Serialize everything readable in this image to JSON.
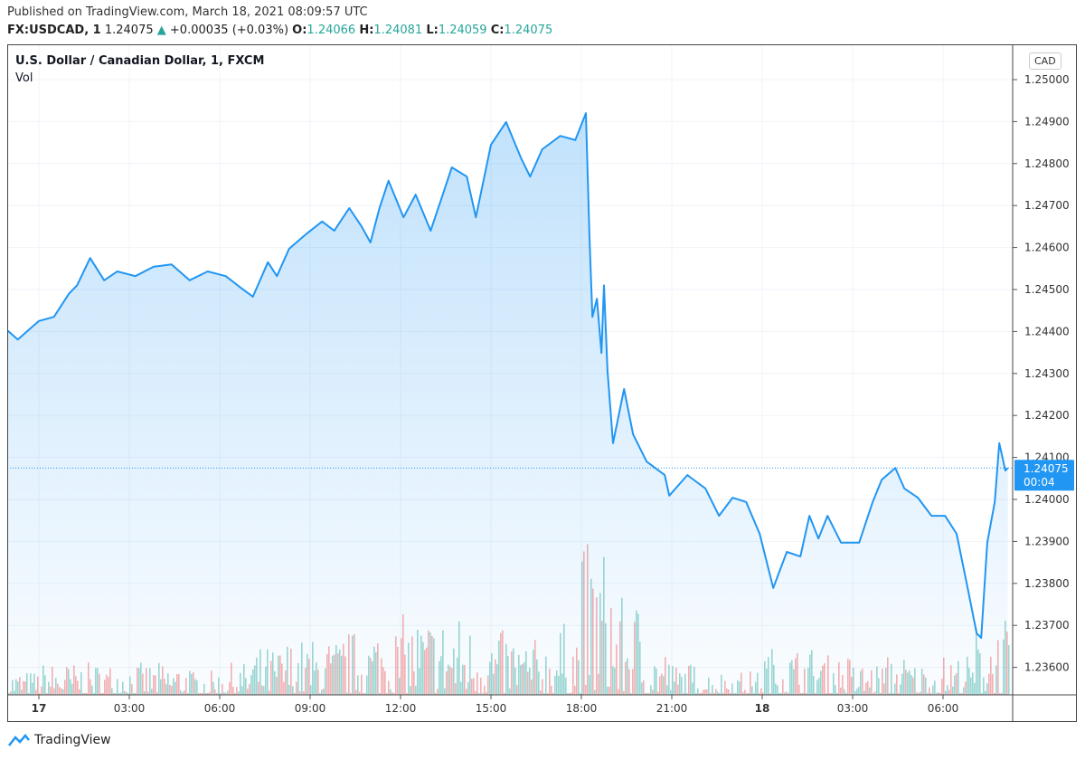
{
  "header": {
    "published": "Published on TradingView.com, March 18, 2021 08:09:57 UTC",
    "symbol": "FX:USDCAD, 1",
    "last": "1.24075",
    "change": "+0.00035 (+0.03%)",
    "o_label": "O:",
    "o": "1.24066",
    "h_label": "H:",
    "h": "1.24081",
    "l_label": "L:",
    "l": "1.24059",
    "c_label": "C:",
    "c": "1.24075",
    "up_icon": "triangle-up-icon"
  },
  "legend": {
    "title": "U.S. Dollar / Canadian Dollar, 1, FXCM",
    "vol": "Vol"
  },
  "currency": "CAD",
  "footer": {
    "brand": "TradingView"
  },
  "colors": {
    "line": "#2196f3",
    "up": "#26a69a",
    "down": "#ef5350",
    "label_bg": "#2196f3"
  },
  "chart_data": {
    "type": "area",
    "ylim": [
      1.2354,
      1.2508
    ],
    "y_ticks": [
      "1.25000",
      "1.24900",
      "1.24800",
      "1.24700",
      "1.24600",
      "1.24500",
      "1.24400",
      "1.24300",
      "1.24200",
      "1.24100",
      "1.24000",
      "1.23900",
      "1.23800",
      "1.23700",
      "1.23600"
    ],
    "x_ticks": [
      {
        "label": "17",
        "t": "2021-03-17T00:00",
        "bold": true
      },
      {
        "label": "03:00",
        "t": "2021-03-17T03:00"
      },
      {
        "label": "06:00",
        "t": "2021-03-17T06:00"
      },
      {
        "label": "09:00",
        "t": "2021-03-17T09:00"
      },
      {
        "label": "12:00",
        "t": "2021-03-17T12:00"
      },
      {
        "label": "15:00",
        "t": "2021-03-17T15:00"
      },
      {
        "label": "18:00",
        "t": "2021-03-17T18:00"
      },
      {
        "label": "21:00",
        "t": "2021-03-17T21:00"
      },
      {
        "label": "18",
        "t": "2021-03-18T00:00",
        "bold": true
      },
      {
        "label": "03:00",
        "t": "2021-03-18T03:00"
      },
      {
        "label": "06:00",
        "t": "2021-03-18T06:00"
      }
    ],
    "grid": true,
    "current_price": {
      "value": 1.24075,
      "label": "1.24075",
      "countdown": "00:04"
    },
    "series": [
      {
        "values": [
          [
            "2021-03-16T22:57",
            1.24403
          ],
          [
            "2021-03-16T23:18",
            1.24381
          ],
          [
            "2021-03-17T00:00",
            1.24425
          ],
          [
            "2021-03-17T00:30",
            1.24435
          ],
          [
            "2021-03-17T01:00",
            1.2449
          ],
          [
            "2021-03-17T01:16",
            1.2451
          ],
          [
            "2021-03-17T01:42",
            1.24575
          ],
          [
            "2021-03-17T02:10",
            1.24522
          ],
          [
            "2021-03-17T02:36",
            1.24543
          ],
          [
            "2021-03-17T03:12",
            1.24532
          ],
          [
            "2021-03-17T03:48",
            1.24554
          ],
          [
            "2021-03-17T04:24",
            1.2456
          ],
          [
            "2021-03-17T05:00",
            1.24522
          ],
          [
            "2021-03-17T05:36",
            1.24543
          ],
          [
            "2021-03-17T06:12",
            1.24532
          ],
          [
            "2021-03-17T06:42",
            1.24504
          ],
          [
            "2021-03-17T07:06",
            1.24483
          ],
          [
            "2021-03-17T07:36",
            1.24565
          ],
          [
            "2021-03-17T07:54",
            1.24532
          ],
          [
            "2021-03-17T08:18",
            1.24597
          ],
          [
            "2021-03-17T08:54",
            1.24634
          ],
          [
            "2021-03-17T09:24",
            1.24662
          ],
          [
            "2021-03-17T09:48",
            1.2464
          ],
          [
            "2021-03-17T10:18",
            1.24694
          ],
          [
            "2021-03-17T10:42",
            1.24651
          ],
          [
            "2021-03-17T11:00",
            1.24612
          ],
          [
            "2021-03-17T11:18",
            1.24694
          ],
          [
            "2021-03-17T11:36",
            1.24759
          ],
          [
            "2021-03-17T12:06",
            1.24672
          ],
          [
            "2021-03-17T12:30",
            1.24726
          ],
          [
            "2021-03-17T13:00",
            1.2464
          ],
          [
            "2021-03-17T13:24",
            1.24726
          ],
          [
            "2021-03-17T13:42",
            1.24791
          ],
          [
            "2021-03-17T14:12",
            1.24769
          ],
          [
            "2021-03-17T14:30",
            1.24672
          ],
          [
            "2021-03-17T15:00",
            1.24845
          ],
          [
            "2021-03-17T15:30",
            1.24899
          ],
          [
            "2021-03-17T16:00",
            1.24813
          ],
          [
            "2021-03-17T16:18",
            1.24769
          ],
          [
            "2021-03-17T16:42",
            1.24834
          ],
          [
            "2021-03-17T17:18",
            1.24866
          ],
          [
            "2021-03-17T17:48",
            1.24856
          ],
          [
            "2021-03-17T18:09",
            1.2492
          ],
          [
            "2021-03-17T18:16",
            1.24629
          ],
          [
            "2021-03-17T18:22",
            1.24435
          ],
          [
            "2021-03-17T18:31",
            1.24478
          ],
          [
            "2021-03-17T18:40",
            1.24349
          ],
          [
            "2021-03-17T18:45",
            1.2451
          ],
          [
            "2021-03-17T18:52",
            1.24306
          ],
          [
            "2021-03-17T19:03",
            1.24134
          ],
          [
            "2021-03-17T19:25",
            1.24263
          ],
          [
            "2021-03-17T19:43",
            1.24155
          ],
          [
            "2021-03-17T20:10",
            1.2409
          ],
          [
            "2021-03-17T20:46",
            1.24058
          ],
          [
            "2021-03-17T20:55",
            1.24009
          ],
          [
            "2021-03-17T21:31",
            1.24058
          ],
          [
            "2021-03-17T22:07",
            1.24026
          ],
          [
            "2021-03-17T22:34",
            1.23961
          ],
          [
            "2021-03-17T23:01",
            1.24004
          ],
          [
            "2021-03-17T23:28",
            1.23994
          ],
          [
            "2021-03-17T23:55",
            1.23918
          ],
          [
            "2021-03-18T00:22",
            1.23789
          ],
          [
            "2021-03-18T00:49",
            1.23875
          ],
          [
            "2021-03-18T01:16",
            1.23864
          ],
          [
            "2021-03-18T01:34",
            1.23961
          ],
          [
            "2021-03-18T01:52",
            1.23907
          ],
          [
            "2021-03-18T02:10",
            1.23961
          ],
          [
            "2021-03-18T02:37",
            1.23897
          ],
          [
            "2021-03-18T03:13",
            1.23897
          ],
          [
            "2021-03-18T03:40",
            1.23994
          ],
          [
            "2021-03-18T03:58",
            1.24047
          ],
          [
            "2021-03-18T04:25",
            1.24075
          ],
          [
            "2021-03-18T04:43",
            1.24026
          ],
          [
            "2021-03-18T05:10",
            1.24004
          ],
          [
            "2021-03-18T05:37",
            1.23961
          ],
          [
            "2021-03-18T06:04",
            1.23961
          ],
          [
            "2021-03-18T06:27",
            1.23918
          ],
          [
            "2021-03-18T06:49",
            1.23789
          ],
          [
            "2021-03-18T07:07",
            1.23681
          ],
          [
            "2021-03-18T07:16",
            1.2367
          ],
          [
            "2021-03-18T07:28",
            1.23897
          ],
          [
            "2021-03-18T07:43",
            1.23994
          ],
          [
            "2021-03-18T07:52",
            1.24134
          ],
          [
            "2021-03-18T08:04",
            1.24069
          ],
          [
            "2021-03-18T08:09",
            1.24075
          ]
        ]
      }
    ],
    "volume_hourly_relative": [
      0.15,
      0.2,
      0.2,
      0.2,
      0.2,
      0.2,
      0.15,
      0.2,
      0.3,
      0.35,
      0.35,
      0.4,
      0.45,
      0.5,
      0.5,
      0.45,
      0.4,
      0.35,
      0.45,
      0.95,
      0.6,
      0.3,
      0.2,
      0.15,
      0.15,
      0.3,
      0.3,
      0.25,
      0.2,
      0.25,
      0.2,
      0.25,
      0.45,
      0.5
    ]
  }
}
